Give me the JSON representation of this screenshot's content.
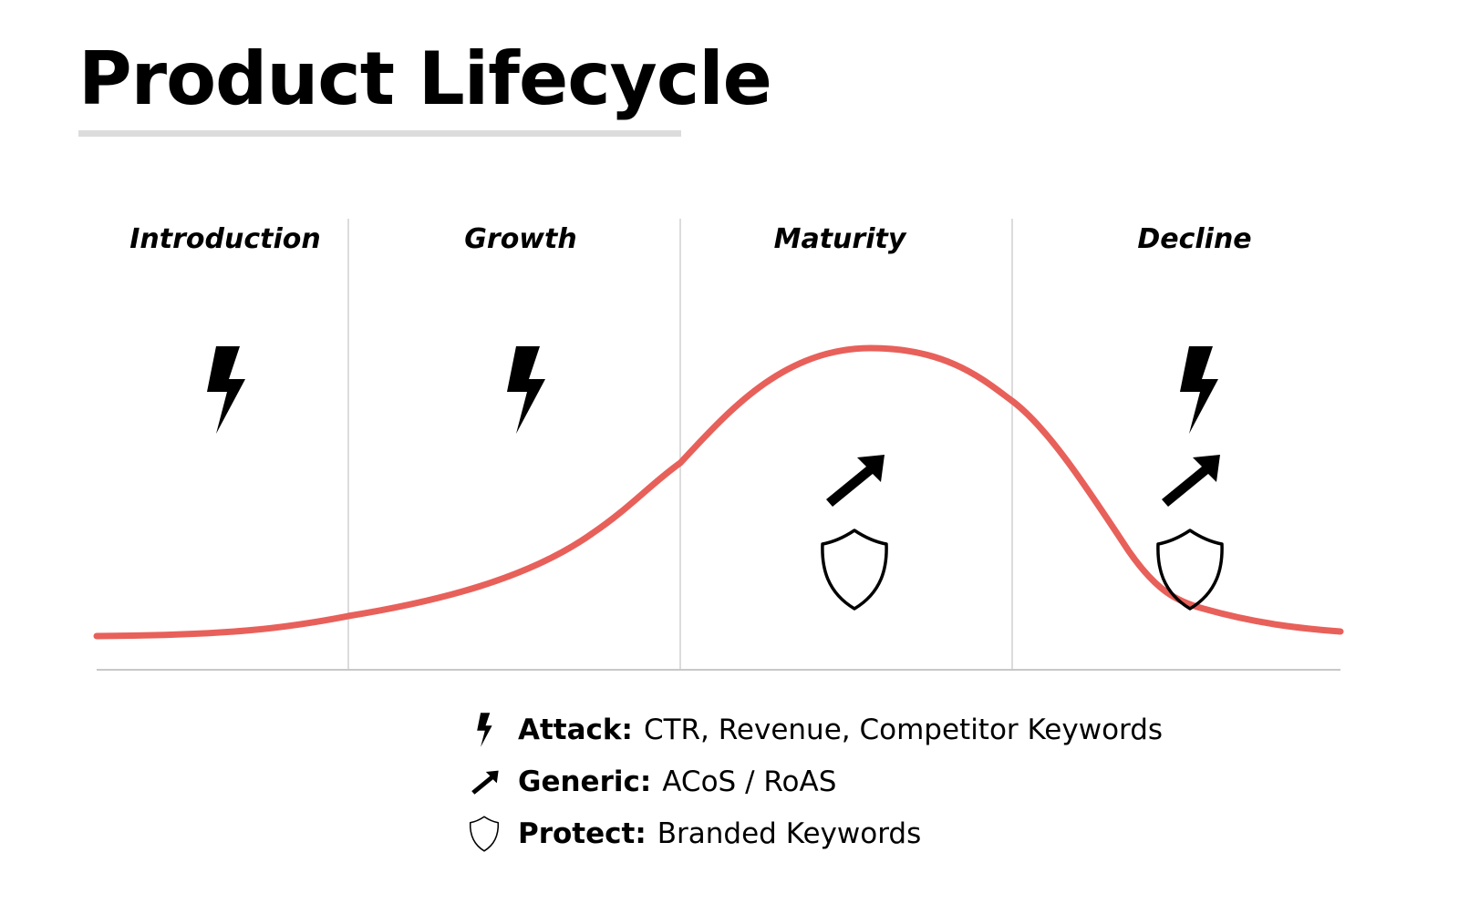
{
  "title": "Product Lifecycle",
  "phases": [
    {
      "label": "Introduction",
      "icons": [
        "lightning-icon"
      ]
    },
    {
      "label": "Growth",
      "icons": [
        "lightning-icon"
      ]
    },
    {
      "label": "Maturity",
      "icons": [
        "arrow-up-right-icon",
        "shield-icon"
      ]
    },
    {
      "label": "Decline",
      "icons": [
        "lightning-icon",
        "arrow-up-right-icon",
        "shield-icon"
      ]
    }
  ],
  "legend": [
    {
      "icon": "lightning-icon",
      "key": "Attack:",
      "value": "CTR, Revenue, Competitor Keywords"
    },
    {
      "icon": "arrow-up-right-icon",
      "key": "Generic:",
      "value": "ACoS / RoAS"
    },
    {
      "icon": "shield-icon",
      "key": "Protect:",
      "value": "Branded Keywords"
    }
  ],
  "colors": {
    "curve": "#e8605a",
    "divider": "#d0d0d0",
    "axis": "#c8c8c8",
    "title_rule": "#dcdcdc",
    "icon": "#000000"
  }
}
